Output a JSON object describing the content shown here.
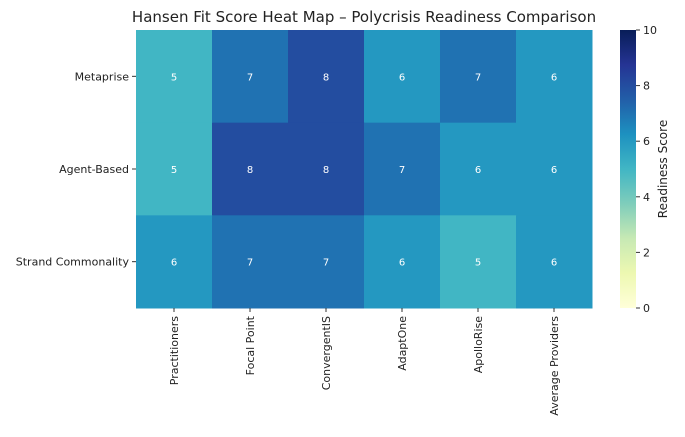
{
  "chart_data": {
    "type": "heatmap",
    "title": "Hansen Fit Score Heat Map – Polycrisis Readiness Comparison",
    "rows": [
      "Metaprise",
      "Agent-Based",
      "Strand Commonality"
    ],
    "columns": [
      "Practitioners",
      "Focal Point",
      "ConvergentIS",
      "AdaptOne",
      "ApolloRise",
      "Average Providers"
    ],
    "values": [
      [
        5,
        7,
        8,
        6,
        7,
        6
      ],
      [
        5,
        8,
        8,
        7,
        6,
        6
      ],
      [
        6,
        7,
        7,
        6,
        5,
        6
      ]
    ],
    "colorbar": {
      "label": "Readiness Score",
      "min": 0,
      "max": 10,
      "ticks": [
        "0",
        "2",
        "4",
        "6",
        "8",
        "10"
      ],
      "colormap": "YlGnBu",
      "stops": [
        {
          "v": 0.0,
          "c": "#ffffd9"
        },
        {
          "v": 0.125,
          "c": "#edf8b1"
        },
        {
          "v": 0.25,
          "c": "#c7e9b4"
        },
        {
          "v": 0.375,
          "c": "#7fcdbb"
        },
        {
          "v": 0.5,
          "c": "#41b6c4"
        },
        {
          "v": 0.625,
          "c": "#1d91c0"
        },
        {
          "v": 0.75,
          "c": "#225ea8"
        },
        {
          "v": 0.875,
          "c": "#253494"
        },
        {
          "v": 1.0,
          "c": "#081d58"
        }
      ]
    },
    "annotations": true
  }
}
